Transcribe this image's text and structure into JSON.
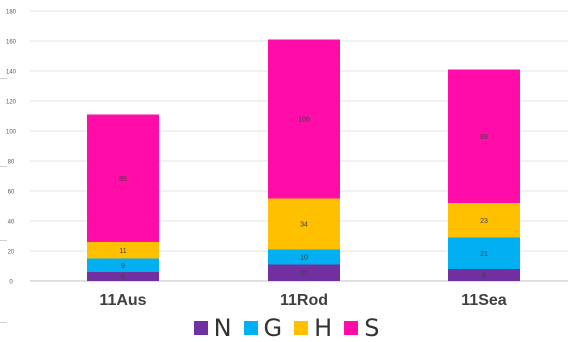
{
  "chart_data": {
    "type": "bar",
    "stacked": true,
    "title": "",
    "xlabel": "",
    "ylabel": "",
    "ylim": [
      0,
      180
    ],
    "yticks": [
      0,
      20,
      40,
      60,
      80,
      100,
      120,
      140,
      160,
      180
    ],
    "grid": true,
    "legend_position": "bottom",
    "categories": [
      "11Aus",
      "11Rod",
      "11Sea"
    ],
    "series": [
      {
        "name": "N",
        "color": "#7030a0",
        "values": [
          6,
          11,
          8
        ],
        "labels": [
          "6",
          "11",
          "8"
        ]
      },
      {
        "name": "G",
        "color": "#00b0f0",
        "values": [
          9,
          10,
          21
        ],
        "labels": [
          "9",
          "10",
          "21"
        ]
      },
      {
        "name": "H",
        "color": "#ffc000",
        "values": [
          11,
          34,
          23
        ],
        "labels": [
          "11",
          "34",
          "23"
        ]
      },
      {
        "name": "S",
        "color": "#ff0ca9",
        "values": [
          85,
          106,
          89
        ],
        "labels": [
          "85",
          "106",
          "89"
        ]
      }
    ]
  }
}
